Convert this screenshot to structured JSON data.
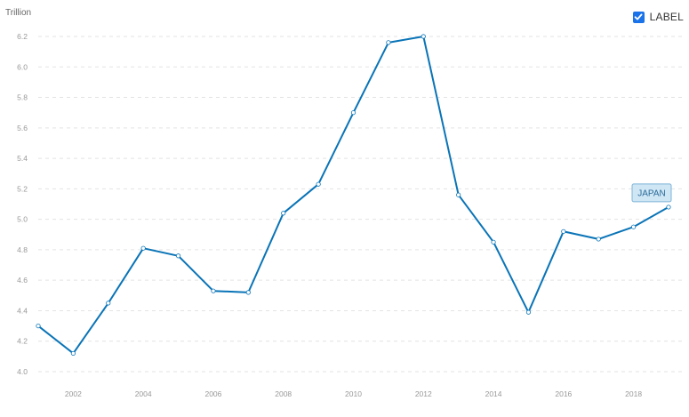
{
  "label_toggle": {
    "text": "LABEL",
    "checked": true
  },
  "colors": {
    "line": "#0a74b7",
    "checkbox": "#1a73e8",
    "tag_fill": "#cfe6f5"
  },
  "chart_data": {
    "type": "line",
    "title": "",
    "xlabel": "",
    "ylabel": "Trillion",
    "xlim": [
      2001,
      2019
    ],
    "ylim": [
      4.0,
      6.2
    ],
    "y_ticks": [
      "4.0",
      "4.2",
      "4.4",
      "4.6",
      "4.8",
      "5.0",
      "5.2",
      "5.4",
      "5.6",
      "5.8",
      "6.0",
      "6.2"
    ],
    "x_ticks": [
      "2002",
      "2004",
      "2006",
      "2008",
      "2010",
      "2012",
      "2014",
      "2016",
      "2018"
    ],
    "grid": true,
    "x": [
      2001,
      2002,
      2003,
      2004,
      2005,
      2006,
      2007,
      2008,
      2009,
      2010,
      2011,
      2012,
      2013,
      2014,
      2015,
      2016,
      2017,
      2018,
      2019
    ],
    "series": [
      {
        "name": "JAPAN",
        "values": [
          4.3,
          4.12,
          4.45,
          4.81,
          4.76,
          4.53,
          4.52,
          5.04,
          5.23,
          5.7,
          6.16,
          6.2,
          5.16,
          4.85,
          4.39,
          4.92,
          4.87,
          4.95,
          5.08
        ]
      }
    ]
  }
}
